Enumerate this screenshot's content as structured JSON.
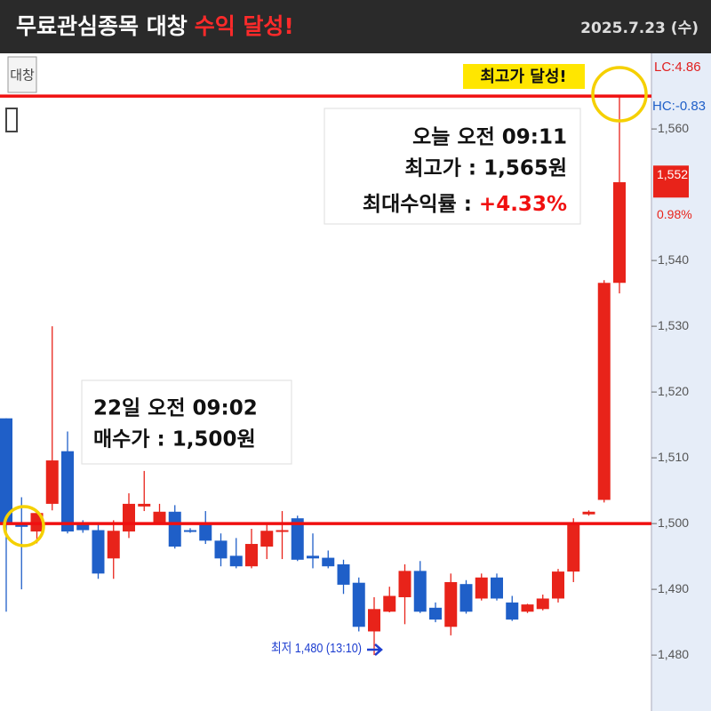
{
  "header": {
    "title": "무료관심종목 대창",
    "title_highlight": "수익 달성!",
    "date": "2025.7.23 (수)"
  },
  "chart_data": {
    "type": "candlestick",
    "symbol_label": "대창",
    "ylim": [
      1471.5,
      1571.5
    ],
    "yticks": [
      {
        "value": 1480,
        "label": "1,480"
      },
      {
        "value": 1490,
        "label": "1,490"
      },
      {
        "value": 1500,
        "label": "1,500"
      },
      {
        "value": 1510,
        "label": "1,510"
      },
      {
        "value": 1520,
        "label": "1,520"
      },
      {
        "value": 1530,
        "label": "1,530"
      },
      {
        "value": 1540,
        "label": "1,540"
      },
      {
        "value": 1560,
        "label": "1,560"
      }
    ],
    "up_color": "#e8231a",
    "down_color": "#1f5fc8",
    "open": [
      1516,
      1500,
      1498.8,
      1503,
      1511,
      1500,
      1499,
      1494.7,
      1498.8,
      1502.6,
      1499.9,
      1501.8,
      1499,
      1499.9,
      1497.4,
      1495.1,
      1493.5,
      1496.5,
      1498.8,
      1500.8,
      1495.1,
      1494.8,
      1493.8,
      1491,
      1483.6,
      1486.6,
      1488.8,
      1492.8,
      1487.2,
      1484.3,
      1490.8,
      1488.6,
      1491.8,
      1488,
      1486.6,
      1487,
      1488.6,
      1492.7,
      1501.4,
      1503.6,
      1536.6
    ],
    "high": [
      1516,
      1504,
      1502,
      1530,
      1514,
      1500.5,
      1500,
      1500.5,
      1504.6,
      1508,
      1503,
      1502.8,
      1499.3,
      1501.9,
      1498.5,
      1497.8,
      1499.2,
      1499.9,
      1501.9,
      1501.2,
      1498.5,
      1495.9,
      1494.5,
      1491.8,
      1488.8,
      1490.4,
      1493.8,
      1494.3,
      1488,
      1492.4,
      1491.4,
      1492.4,
      1492.4,
      1489,
      1487.8,
      1489.2,
      1493.1,
      1500.8,
      1502,
      1537,
      1565
    ],
    "low": [
      1486.6,
      1490,
      1497,
      1502,
      1498.5,
      1498.6,
      1491.6,
      1491.6,
      1497.8,
      1501.9,
      1499.8,
      1496.2,
      1498.6,
      1496.9,
      1493.5,
      1493.2,
      1493.2,
      1494.6,
      1494.6,
      1494.3,
      1493.2,
      1493.2,
      1489.3,
      1483.6,
      1480,
      1486.5,
      1484.7,
      1486.4,
      1485,
      1483,
      1486.3,
      1488.3,
      1488.3,
      1485.2,
      1486.4,
      1486.8,
      1488.0,
      1491.1,
      1501.2,
      1503.2,
      1535
    ],
    "close": [
      1500,
      1499.5,
      1501.6,
      1509.6,
      1498.8,
      1499,
      1492.4,
      1498.9,
      1503,
      1503,
      1501.8,
      1496.5,
      1498.8,
      1497.4,
      1494.7,
      1493.5,
      1496.9,
      1498.9,
      1499,
      1494.5,
      1494.7,
      1493.5,
      1490.7,
      1484.3,
      1487,
      1489,
      1492.8,
      1486.6,
      1485.4,
      1491.1,
      1486.6,
      1491.8,
      1488.6,
      1485.4,
      1487.7,
      1488.6,
      1492.7,
      1499.9,
      1501.8,
      1536.6,
      1551.9
    ],
    "hlines": [
      1565,
      1500
    ],
    "hline_color": "#f01010",
    "last_price": {
      "value": 1552,
      "label": "1,552"
    },
    "change_label": "0.98%",
    "lc_label": "LC:4.86",
    "hc_label": "HC:-0.83",
    "high_badge": "최고가 달성!",
    "sell_box": {
      "line1": "오늘 오전 09:11",
      "line2": "최고가 : 1,565원",
      "line3_prefix": "최대수익률 : ",
      "line3_value": "+4.33%"
    },
    "buy_box": {
      "line1": "22일 오전 09:02",
      "line2": "매수가 : 1,500원"
    },
    "low_note": "최저 1,480 (13:10)"
  }
}
